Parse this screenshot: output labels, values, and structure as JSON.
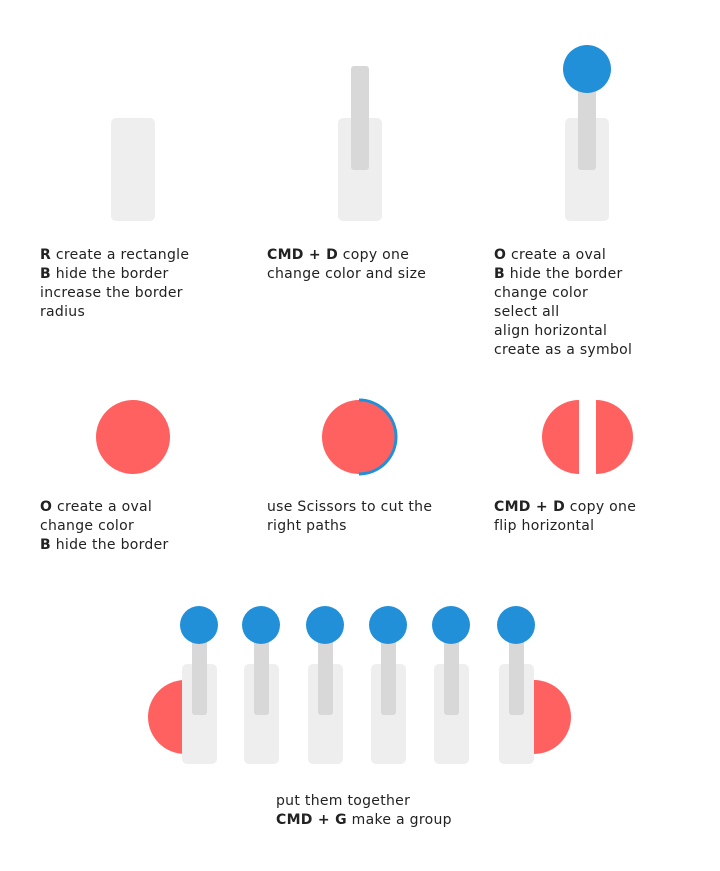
{
  "colors": {
    "rect_fill": "#eeeeee",
    "bar_fill": "#d8d8d8",
    "knob_blue": "#2290d8",
    "coral": "#ff6060",
    "text": "#222222"
  },
  "steps": [
    {
      "id": "step-1",
      "lines": [
        {
          "key": "R",
          "text": " create a rectangle"
        },
        {
          "key": "B",
          "text": " hide the border"
        },
        {
          "key": "",
          "text": "increase the border"
        },
        {
          "key": "",
          "text": "radius"
        }
      ]
    },
    {
      "id": "step-2",
      "lines": [
        {
          "key": "CMD + D",
          "text": " copy one"
        },
        {
          "key": "",
          "text": "change color and size"
        }
      ]
    },
    {
      "id": "step-3",
      "lines": [
        {
          "key": "O",
          "text": " create a oval"
        },
        {
          "key": "B",
          "text": " hide the border"
        },
        {
          "key": "",
          "text": "change color"
        },
        {
          "key": "",
          "text": "select all"
        },
        {
          "key": "",
          "text": "align horizontal"
        },
        {
          "key": "",
          "text": "create as a symbol"
        }
      ]
    },
    {
      "id": "step-4",
      "lines": [
        {
          "key": "O",
          "text": " create a oval"
        },
        {
          "key": "",
          "text": "change color"
        },
        {
          "key": "B",
          "text": " hide the border"
        }
      ]
    },
    {
      "id": "step-5",
      "lines": [
        {
          "key": "",
          "text": "use Scissors to cut the"
        },
        {
          "key": "",
          "text": "right paths"
        }
      ]
    },
    {
      "id": "step-6",
      "lines": [
        {
          "key": "CMD + D",
          "text": " copy one"
        },
        {
          "key": "",
          "text": "flip horizontal"
        }
      ]
    },
    {
      "id": "step-7",
      "lines": [
        {
          "key": "",
          "text": "put them together"
        },
        {
          "key": "CMD + G",
          "text": " make a group"
        }
      ]
    }
  ],
  "final_assembly": {
    "slider_count": 6
  }
}
